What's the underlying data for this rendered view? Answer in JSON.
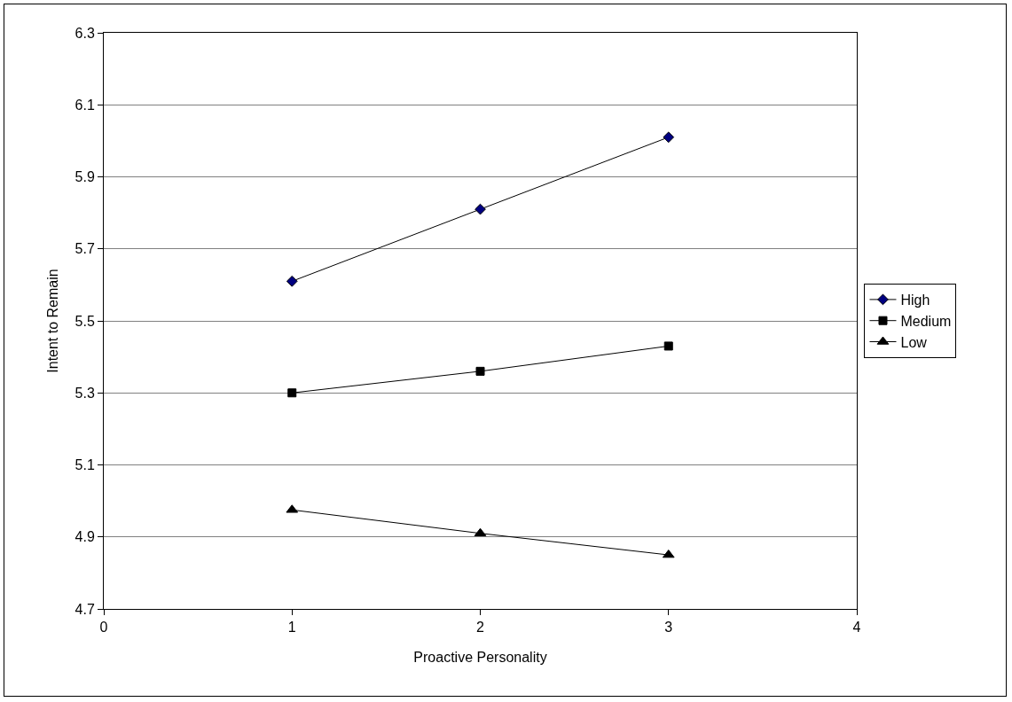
{
  "chart_data": {
    "type": "line",
    "xlabel": "Proactive Personality",
    "ylabel": "Intent to Remain",
    "x": [
      1,
      2,
      3
    ],
    "series": [
      {
        "name": "High",
        "color": "#000080",
        "marker": "diamond",
        "values": [
          5.61,
          5.81,
          6.01
        ]
      },
      {
        "name": "Medium",
        "color": "#000000",
        "marker": "square",
        "values": [
          5.3,
          5.36,
          5.43
        ]
      },
      {
        "name": "Low",
        "color": "#000000",
        "marker": "triangle",
        "values": [
          4.975,
          4.91,
          4.85
        ]
      }
    ],
    "xlim": [
      0,
      4
    ],
    "xticks": [
      0,
      1,
      2,
      3,
      4
    ],
    "ylim": [
      4.7,
      6.3
    ],
    "yticks": [
      4.7,
      4.9,
      5.1,
      5.3,
      5.5,
      5.7,
      5.9,
      6.1,
      6.3
    ],
    "grid": "y",
    "legend": "right",
    "line_style": "solid"
  }
}
